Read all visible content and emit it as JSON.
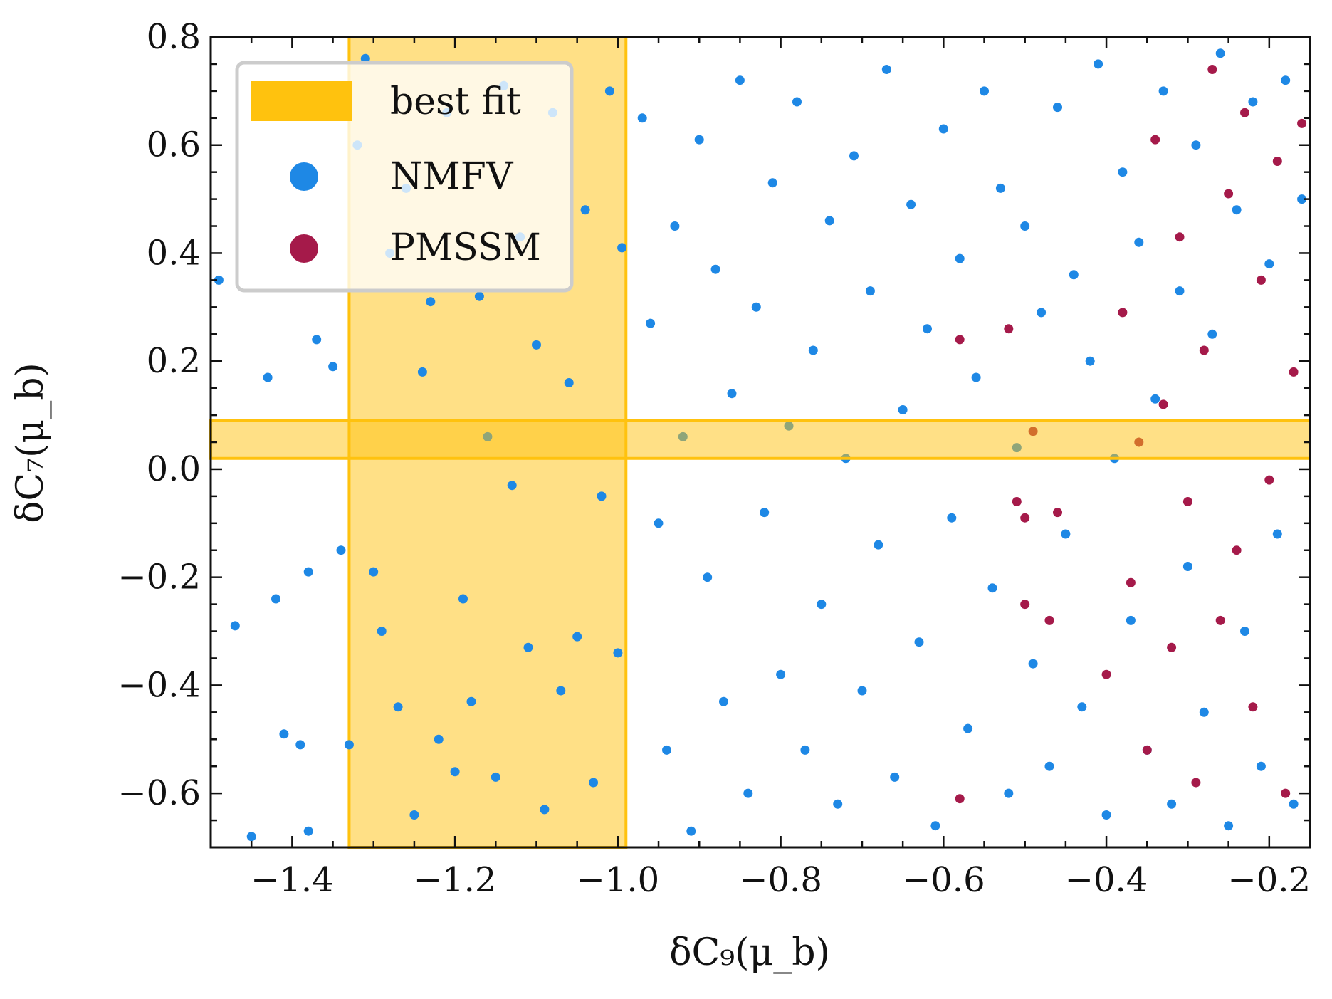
{
  "chart_data": {
    "type": "scatter",
    "xlabel": "δC₉(μ_b)",
    "ylabel": "δC₇(μ_b)",
    "xlim": [
      -1.5,
      -0.15
    ],
    "ylim": [
      -0.7,
      0.8
    ],
    "xticks": [
      {
        "value": -1.4,
        "label": "−1.4"
      },
      {
        "value": -1.2,
        "label": "−1.2"
      },
      {
        "value": -1.0,
        "label": "−1.0"
      },
      {
        "value": -0.8,
        "label": "−0.8"
      },
      {
        "value": -0.6,
        "label": "−0.6"
      },
      {
        "value": -0.4,
        "label": "−0.4"
      },
      {
        "value": -0.2,
        "label": "−0.2"
      }
    ],
    "yticks": [
      {
        "value": 0.8,
        "label": "0.8"
      },
      {
        "value": 0.6,
        "label": "0.6"
      },
      {
        "value": 0.4,
        "label": "0.4"
      },
      {
        "value": 0.2,
        "label": "0.2"
      },
      {
        "value": 0.0,
        "label": "0.0"
      },
      {
        "value": -0.2,
        "label": "−0.2"
      },
      {
        "value": -0.4,
        "label": "−0.4"
      },
      {
        "value": -0.6,
        "label": "−0.6"
      }
    ],
    "grid": false,
    "legend_position": "top-left",
    "legend": [
      {
        "label": "best fit",
        "marker": "band",
        "color": "#FFC20E"
      },
      {
        "label": "NMFV",
        "marker": "dot",
        "color": "#1E88E5"
      },
      {
        "label": "PMSSM",
        "marker": "dot",
        "color": "#A51A4A"
      }
    ],
    "best_fit": {
      "c9_band": [
        -1.33,
        -0.99
      ],
      "c7_band": [
        0.02,
        0.09
      ],
      "color": "#FFC20E",
      "opacity": 0.5
    },
    "series": [
      {
        "name": "NMFV",
        "color": "#1E88E5",
        "points": [
          [
            -1.49,
            0.35
          ],
          [
            -1.47,
            -0.29
          ],
          [
            -1.45,
            -0.68
          ],
          [
            -1.43,
            0.17
          ],
          [
            -1.42,
            -0.24
          ],
          [
            -1.41,
            -0.49
          ],
          [
            -1.4,
            0.7
          ],
          [
            -1.39,
            -0.51
          ],
          [
            -1.38,
            -0.19
          ],
          [
            -1.38,
            -0.67
          ],
          [
            -1.37,
            0.24
          ],
          [
            -1.35,
            0.19
          ],
          [
            -1.34,
            -0.15
          ],
          [
            -1.33,
            -0.51
          ],
          [
            -1.32,
            0.6
          ],
          [
            -1.31,
            0.76
          ],
          [
            -1.3,
            -0.19
          ],
          [
            -1.29,
            -0.3
          ],
          [
            -1.28,
            0.4
          ],
          [
            -1.27,
            -0.44
          ],
          [
            -1.26,
            0.52
          ],
          [
            -1.25,
            -0.64
          ],
          [
            -1.24,
            0.18
          ],
          [
            -1.23,
            0.31
          ],
          [
            -1.22,
            -0.5
          ],
          [
            -1.21,
            0.66
          ],
          [
            -1.2,
            -0.56
          ],
          [
            -1.19,
            -0.24
          ],
          [
            -1.18,
            -0.43
          ],
          [
            -1.17,
            0.32
          ],
          [
            -1.16,
            0.06
          ],
          [
            -1.15,
            -0.57
          ],
          [
            -1.14,
            0.71
          ],
          [
            -1.13,
            -0.03
          ],
          [
            -1.12,
            0.43
          ],
          [
            -1.11,
            -0.33
          ],
          [
            -1.1,
            0.23
          ],
          [
            -1.09,
            -0.63
          ],
          [
            -1.08,
            0.66
          ],
          [
            -1.07,
            -0.41
          ],
          [
            -1.06,
            0.16
          ],
          [
            -1.05,
            -0.31
          ],
          [
            -1.04,
            0.48
          ],
          [
            -1.03,
            -0.58
          ],
          [
            -1.02,
            -0.05
          ],
          [
            -1.01,
            0.7
          ],
          [
            -1.0,
            -0.34
          ],
          [
            -0.995,
            0.41
          ],
          [
            -0.97,
            0.65
          ],
          [
            -0.96,
            0.27
          ],
          [
            -0.95,
            -0.1
          ],
          [
            -0.94,
            -0.52
          ],
          [
            -0.93,
            0.45
          ],
          [
            -0.92,
            0.06
          ],
          [
            -0.91,
            -0.67
          ],
          [
            -0.9,
            0.61
          ],
          [
            -0.89,
            -0.2
          ],
          [
            -0.88,
            0.37
          ],
          [
            -0.87,
            -0.43
          ],
          [
            -0.86,
            0.14
          ],
          [
            -0.85,
            0.72
          ],
          [
            -0.84,
            -0.6
          ],
          [
            -0.83,
            0.3
          ],
          [
            -0.82,
            -0.08
          ],
          [
            -0.81,
            0.53
          ],
          [
            -0.8,
            -0.38
          ],
          [
            -0.79,
            0.08
          ],
          [
            -0.78,
            0.68
          ],
          [
            -0.77,
            -0.52
          ],
          [
            -0.76,
            0.22
          ],
          [
            -0.75,
            -0.25
          ],
          [
            -0.74,
            0.46
          ],
          [
            -0.73,
            -0.62
          ],
          [
            -0.72,
            0.02
          ],
          [
            -0.71,
            0.58
          ],
          [
            -0.7,
            -0.41
          ],
          [
            -0.69,
            0.33
          ],
          [
            -0.68,
            -0.14
          ],
          [
            -0.67,
            0.74
          ],
          [
            -0.66,
            -0.57
          ],
          [
            -0.65,
            0.11
          ],
          [
            -0.64,
            0.49
          ],
          [
            -0.63,
            -0.32
          ],
          [
            -0.62,
            0.26
          ],
          [
            -0.61,
            -0.66
          ],
          [
            -0.6,
            0.63
          ],
          [
            -0.59,
            -0.09
          ],
          [
            -0.58,
            0.39
          ],
          [
            -0.57,
            -0.48
          ],
          [
            -0.56,
            0.17
          ],
          [
            -0.55,
            0.7
          ],
          [
            -0.54,
            -0.22
          ],
          [
            -0.53,
            0.52
          ],
          [
            -0.52,
            -0.6
          ],
          [
            -0.51,
            0.04
          ],
          [
            -0.5,
            0.45
          ],
          [
            -0.49,
            -0.36
          ],
          [
            -0.48,
            0.29
          ],
          [
            -0.47,
            -0.55
          ],
          [
            -0.46,
            0.67
          ],
          [
            -0.45,
            -0.12
          ],
          [
            -0.44,
            0.36
          ],
          [
            -0.43,
            -0.44
          ],
          [
            -0.42,
            0.2
          ],
          [
            -0.41,
            0.75
          ],
          [
            -0.4,
            -0.64
          ],
          [
            -0.39,
            0.02
          ],
          [
            -0.38,
            0.55
          ],
          [
            -0.37,
            -0.28
          ],
          [
            -0.36,
            0.42
          ],
          [
            -0.35,
            -0.52
          ],
          [
            -0.34,
            0.13
          ],
          [
            -0.33,
            0.7
          ],
          [
            -0.32,
            -0.62
          ],
          [
            -0.31,
            0.33
          ],
          [
            -0.3,
            -0.18
          ],
          [
            -0.29,
            0.6
          ],
          [
            -0.28,
            -0.45
          ],
          [
            -0.27,
            0.25
          ],
          [
            -0.26,
            0.77
          ],
          [
            -0.25,
            -0.66
          ],
          [
            -0.24,
            0.48
          ],
          [
            -0.23,
            -0.3
          ],
          [
            -0.22,
            0.68
          ],
          [
            -0.21,
            -0.55
          ],
          [
            -0.2,
            0.38
          ],
          [
            -0.19,
            -0.12
          ],
          [
            -0.18,
            0.72
          ],
          [
            -0.17,
            -0.62
          ],
          [
            -0.16,
            0.5
          ]
        ]
      },
      {
        "name": "PMSSM",
        "color": "#A51A4A",
        "points": [
          [
            -0.58,
            0.24
          ],
          [
            -0.58,
            -0.61
          ],
          [
            -0.52,
            0.26
          ],
          [
            -0.51,
            -0.06
          ],
          [
            -0.5,
            -0.09
          ],
          [
            -0.5,
            -0.25
          ],
          [
            -0.49,
            0.07
          ],
          [
            -0.47,
            -0.28
          ],
          [
            -0.46,
            -0.08
          ],
          [
            -0.4,
            -0.38
          ],
          [
            -0.38,
            0.29
          ],
          [
            -0.37,
            -0.21
          ],
          [
            -0.36,
            0.05
          ],
          [
            -0.35,
            -0.52
          ],
          [
            -0.34,
            0.61
          ],
          [
            -0.33,
            0.12
          ],
          [
            -0.32,
            -0.33
          ],
          [
            -0.31,
            0.43
          ],
          [
            -0.3,
            -0.06
          ],
          [
            -0.29,
            -0.58
          ],
          [
            -0.28,
            0.22
          ],
          [
            -0.27,
            0.74
          ],
          [
            -0.26,
            -0.28
          ],
          [
            -0.25,
            0.51
          ],
          [
            -0.24,
            -0.15
          ],
          [
            -0.23,
            0.66
          ],
          [
            -0.22,
            -0.44
          ],
          [
            -0.21,
            0.35
          ],
          [
            -0.2,
            -0.02
          ],
          [
            -0.19,
            0.57
          ],
          [
            -0.18,
            -0.6
          ],
          [
            -0.17,
            0.18
          ],
          [
            -0.16,
            0.64
          ]
        ]
      }
    ]
  }
}
